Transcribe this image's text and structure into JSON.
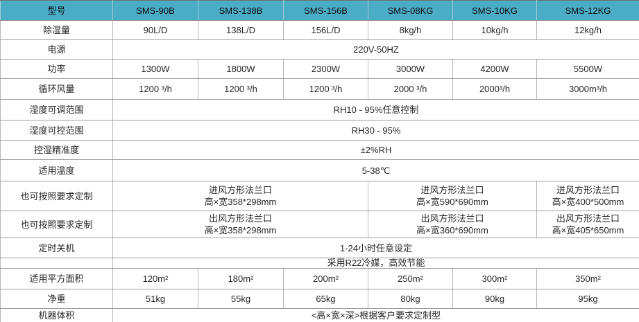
{
  "colors": {
    "header_bg": "#4BACC6",
    "header_text": "#0d0d0d",
    "body_text": "#262626",
    "grid_line": "#9d9d9d"
  },
  "table": {
    "header": [
      "型号",
      "SMS-90B",
      "SMS-138B",
      "SMS-156B",
      "SMS-08KG",
      "SMS-10KG",
      "SMS-12KG"
    ],
    "rows": [
      {
        "label": "除湿量",
        "cells": [
          {
            "text": "90L/D"
          },
          {
            "text": "138L/D"
          },
          {
            "text": "156L/D"
          },
          {
            "text": "8kg/h"
          },
          {
            "text": "10kg/h"
          },
          {
            "text": "12kg/h"
          }
        ]
      },
      {
        "label": "电源",
        "cells": [
          {
            "text": "220V-50HZ",
            "span": 6
          }
        ]
      },
      {
        "label": "功率",
        "cells": [
          {
            "text": "1300W"
          },
          {
            "text": "1800W"
          },
          {
            "text": "2300W"
          },
          {
            "text": "3000W"
          },
          {
            "text": "4200W"
          },
          {
            "text": "5500W"
          }
        ]
      },
      {
        "label": "循环风量",
        "cells": [
          {
            "text": "1200 ³/h"
          },
          {
            "text": "1200 ³/h"
          },
          {
            "text": "1200 ³/h"
          },
          {
            "text": "2000 ³/h"
          },
          {
            "text": "2000³/h"
          },
          {
            "text": "3000m³/h"
          }
        ]
      },
      {
        "label": "湿度可调范围",
        "cells": [
          {
            "text": "RH10 - 95%任意控制",
            "span": 6
          }
        ]
      },
      {
        "label": "湿度可控范围",
        "cells": [
          {
            "text": "RH30 - 95%",
            "span": 6
          }
        ]
      },
      {
        "label": "控湿精准度",
        "cells": [
          {
            "text": "±2%RH",
            "span": 6
          }
        ]
      },
      {
        "label": "适用温度",
        "cells": [
          {
            "text": "5-38℃",
            "span": 6
          }
        ]
      },
      {
        "label": "也可按照要求定制",
        "cells": [
          {
            "text": "进风方形法兰口\n高×宽358*298mm",
            "span": 3
          },
          {
            "text": "进风方形法兰口\n高×宽590*690mm",
            "span": 2
          },
          {
            "text": "进风方形法兰口\n高×宽400*500mm",
            "span": 1
          }
        ]
      },
      {
        "label": "也可按照要求定制",
        "cells": [
          {
            "text": "出风方形法兰口\n高×宽358*298mm",
            "span": 3
          },
          {
            "text": "出风方形法兰口\n高×宽360*690mm",
            "span": 2
          },
          {
            "text": "出风方形法兰口\n高×宽405*650mm",
            "span": 1
          }
        ]
      },
      {
        "label": "定时关机",
        "cells": [
          {
            "text": "1-24小时任意设定",
            "span": 6
          }
        ]
      },
      {
        "label": "",
        "cells": [
          {
            "text": "采用R22冷媒，高效节能",
            "span": 6
          }
        ]
      },
      {
        "label": "适用平方面积",
        "cells": [
          {
            "text": "120m²"
          },
          {
            "text": "180m²"
          },
          {
            "text": "200m²"
          },
          {
            "text": "250m²"
          },
          {
            "text": "300m²"
          },
          {
            "text": "350m²"
          }
        ]
      },
      {
        "label": "净重",
        "cells": [
          {
            "text": "51kg"
          },
          {
            "text": "55kg"
          },
          {
            "text": "65kg"
          },
          {
            "text": "80kg"
          },
          {
            "text": "90kg"
          },
          {
            "text": "95kg"
          }
        ]
      },
      {
        "label": "机器体积",
        "cells": [
          {
            "text": "<高×宽×深>根据客户要求定制型",
            "span": 6
          }
        ]
      }
    ]
  }
}
